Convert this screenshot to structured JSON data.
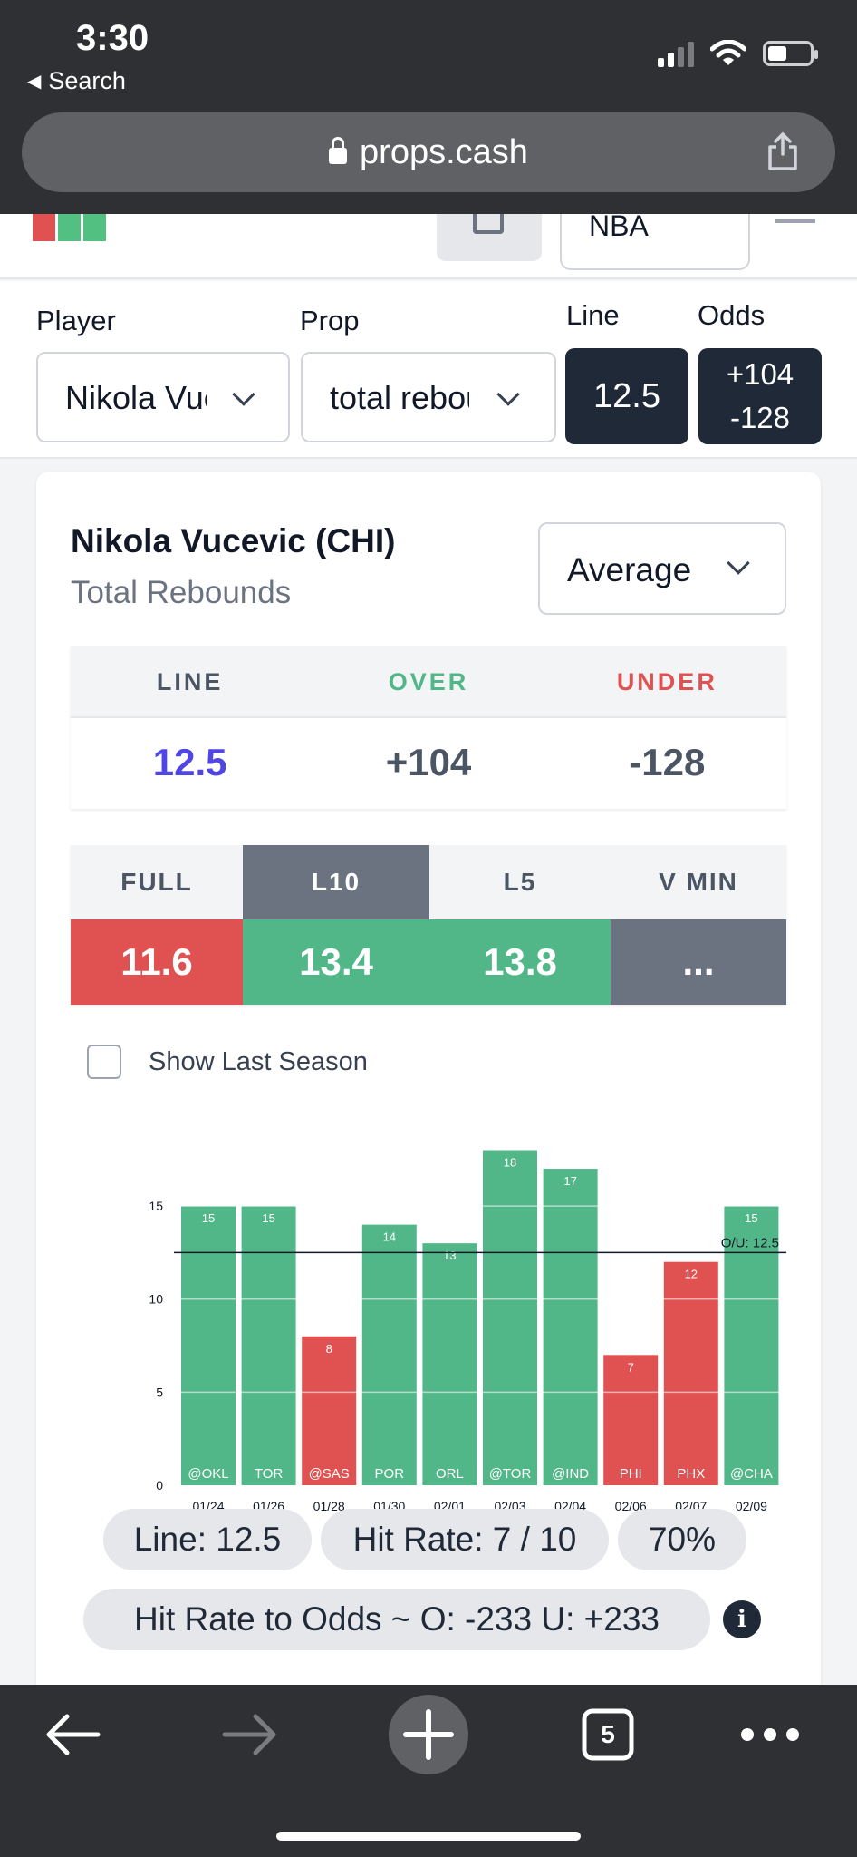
{
  "status_bar": {
    "time": "3:30",
    "back_label": "Search",
    "back_icon": "triangle-left-icon"
  },
  "browser": {
    "url": "props.cash",
    "tab_count": "5"
  },
  "header": {
    "league_label": "NBA",
    "logo_colors": [
      "#e05252",
      "#52c081",
      "#52c081"
    ]
  },
  "selectors": {
    "player_label": "Player",
    "player_value": "Nikola Vucevic",
    "prop_label": "Prop",
    "prop_value": "total rebounds",
    "line_label": "Line",
    "line_value": "12.5",
    "odds_label": "Odds",
    "odds_over": "+104",
    "odds_under": "-128"
  },
  "card": {
    "player_name": "Nikola Vucevic (CHI)",
    "prop_name": "Total Rebounds",
    "stat_mode": "Average",
    "lou_headers": {
      "line": "LINE",
      "over": "OVER",
      "under": "UNDER"
    },
    "lou_values": {
      "line": "12.5",
      "over": "+104",
      "under": "-128"
    },
    "splits": [
      {
        "label": "FULL",
        "value": "11.6",
        "color": "#e05252",
        "active": false
      },
      {
        "label": "L10",
        "value": "13.4",
        "color": "#52b788",
        "active": true
      },
      {
        "label": "L5",
        "value": "13.8",
        "color": "#52b788",
        "active": false
      },
      {
        "label": "V MIN",
        "value": "...",
        "color": "#6b7280",
        "active": false
      }
    ],
    "show_last_season_label": "Show Last Season",
    "show_last_season_checked": false,
    "pills": {
      "line": "Line: 12.5",
      "hit_rate": "Hit Rate: 7 / 10",
      "percent": "70%",
      "hit_rate_odds": "Hit Rate to Odds ~ O: -233 U: +233"
    }
  },
  "colors": {
    "over": "#52b788",
    "under": "#e05252",
    "line_value": "#4f46e5",
    "dark": "#1f2937"
  },
  "chart_data": {
    "type": "bar",
    "categories": [
      "01/24",
      "01/26",
      "01/28",
      "01/30",
      "02/01",
      "02/03",
      "02/04",
      "02/06",
      "02/07",
      "02/09"
    ],
    "opponents": [
      "@OKL",
      "TOR",
      "@SAS",
      "POR",
      "ORL",
      "@TOR",
      "@IND",
      "PHI",
      "PHX",
      "@CHA"
    ],
    "values": [
      15,
      15,
      8,
      14,
      13,
      18,
      17,
      7,
      12,
      15
    ],
    "line": 12.5,
    "line_label": "O/U: 12.5",
    "ylim": [
      0,
      19
    ],
    "yticks": [
      0,
      5,
      10,
      15
    ],
    "grid": true,
    "over_color": "#52b788",
    "under_color": "#e05252"
  }
}
